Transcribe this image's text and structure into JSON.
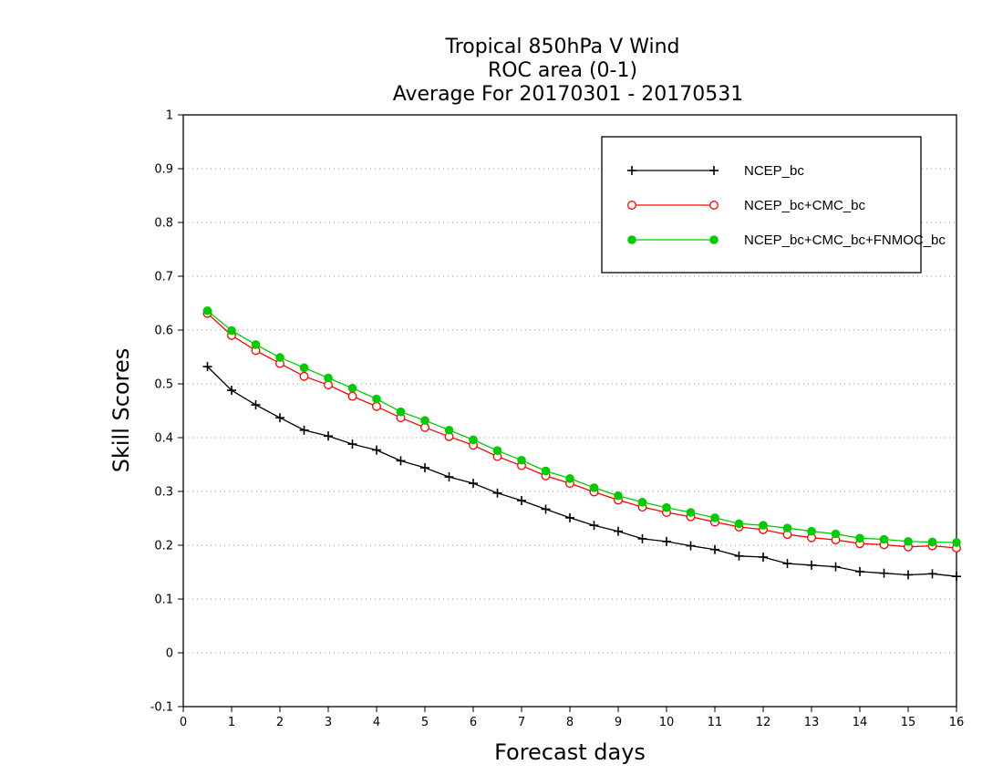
{
  "chart_data": {
    "type": "line",
    "title_lines": [
      "Tropical 850hPa V Wind",
      "ROC area (0-1)",
      "Average For 20170301 - 20170531"
    ],
    "xlabel": "Forecast days",
    "ylabel": "Skill Scores",
    "xlim": [
      0,
      16
    ],
    "ylim": [
      -0.1,
      1
    ],
    "x_ticks": [
      "0",
      "1",
      "2",
      "3",
      "4",
      "5",
      "6",
      "7",
      "8",
      "9",
      "10",
      "11",
      "12",
      "13",
      "14",
      "15",
      "16"
    ],
    "y_ticks": [
      "-0.1",
      "0",
      "0.1",
      "0.2",
      "0.3",
      "0.4",
      "0.5",
      "0.6",
      "0.7",
      "0.8",
      "0.9",
      "1"
    ],
    "grid": "horizontal dotted",
    "legend_position": "top-right",
    "x": [
      0.5,
      1,
      1.5,
      2,
      2.5,
      3,
      3.5,
      4,
      4.5,
      5,
      5.5,
      6,
      6.5,
      7,
      7.5,
      8,
      8.5,
      9,
      9.5,
      10,
      10.5,
      11,
      11.5,
      12,
      12.5,
      13,
      13.5,
      14,
      14.5,
      15,
      15.5,
      16
    ],
    "series": [
      {
        "name": "NCEP_bc",
        "color": "#000000",
        "marker": "plus",
        "values": [
          0.532,
          0.488,
          0.461,
          0.437,
          0.414,
          0.403,
          0.388,
          0.377,
          0.357,
          0.344,
          0.327,
          0.315,
          0.297,
          0.283,
          0.267,
          0.251,
          0.237,
          0.226,
          0.212,
          0.207,
          0.199,
          0.192,
          0.18,
          0.178,
          0.166,
          0.163,
          0.16,
          0.151,
          0.148,
          0.145,
          0.147,
          0.142
        ]
      },
      {
        "name": "NCEP_bc+CMC_bc",
        "color": "#ff0000",
        "marker": "open-circle",
        "values": [
          0.631,
          0.59,
          0.562,
          0.538,
          0.514,
          0.498,
          0.477,
          0.458,
          0.437,
          0.419,
          0.402,
          0.386,
          0.365,
          0.348,
          0.329,
          0.315,
          0.299,
          0.284,
          0.271,
          0.261,
          0.253,
          0.243,
          0.234,
          0.229,
          0.22,
          0.214,
          0.21,
          0.203,
          0.201,
          0.197,
          0.199,
          0.195
        ]
      },
      {
        "name": "NCEP_bc+CMC_bc+FNMOC_bc",
        "color": "#00cc00",
        "marker": "filled-circle",
        "values": [
          0.636,
          0.599,
          0.573,
          0.549,
          0.53,
          0.511,
          0.492,
          0.472,
          0.448,
          0.432,
          0.414,
          0.396,
          0.376,
          0.358,
          0.338,
          0.324,
          0.307,
          0.292,
          0.28,
          0.27,
          0.261,
          0.251,
          0.24,
          0.237,
          0.232,
          0.226,
          0.221,
          0.213,
          0.211,
          0.207,
          0.206,
          0.205
        ]
      }
    ]
  }
}
